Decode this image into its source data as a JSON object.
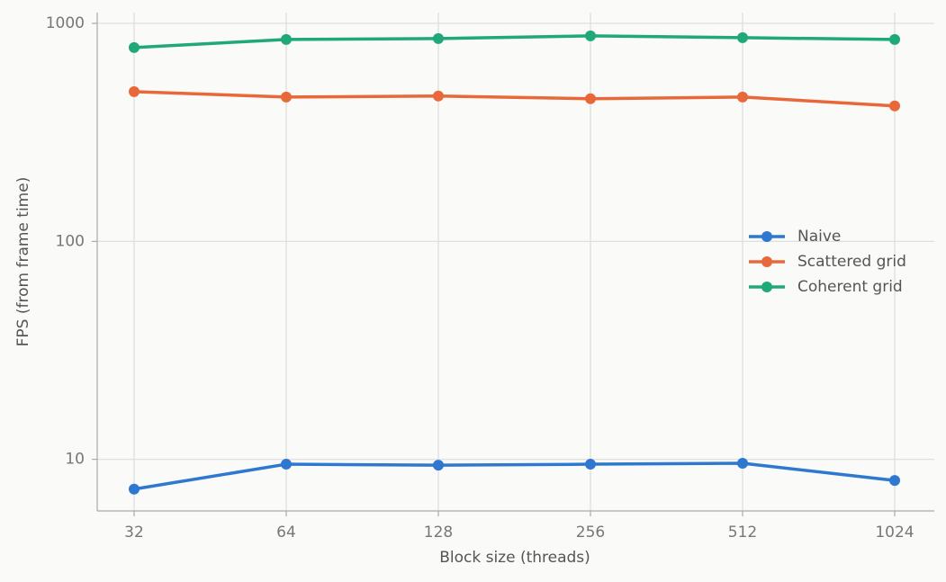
{
  "chart_data": {
    "type": "line",
    "x_label": "Block size (threads)",
    "y_label": "FPS (from frame time)",
    "categories": [
      "32",
      "64",
      "128",
      "256",
      "512",
      "1024"
    ],
    "series": [
      {
        "name": "Naive",
        "color": "#2f78d0",
        "values": [
          7.3,
          9.5,
          9.4,
          9.5,
          9.6,
          8.0
        ]
      },
      {
        "name": "Scattered grid",
        "color": "#e8683a",
        "values": [
          486,
          459,
          464,
          451,
          459,
          418
        ]
      },
      {
        "name": "Coherent grid",
        "color": "#1fa87a",
        "values": [
          774,
          843,
          851,
          876,
          859,
          843
        ]
      }
    ],
    "y_scale": "log",
    "ylim": [
      5.8,
      1120
    ],
    "yticks": [
      10,
      100,
      1000
    ],
    "grid": true,
    "legend_position": "center right"
  }
}
